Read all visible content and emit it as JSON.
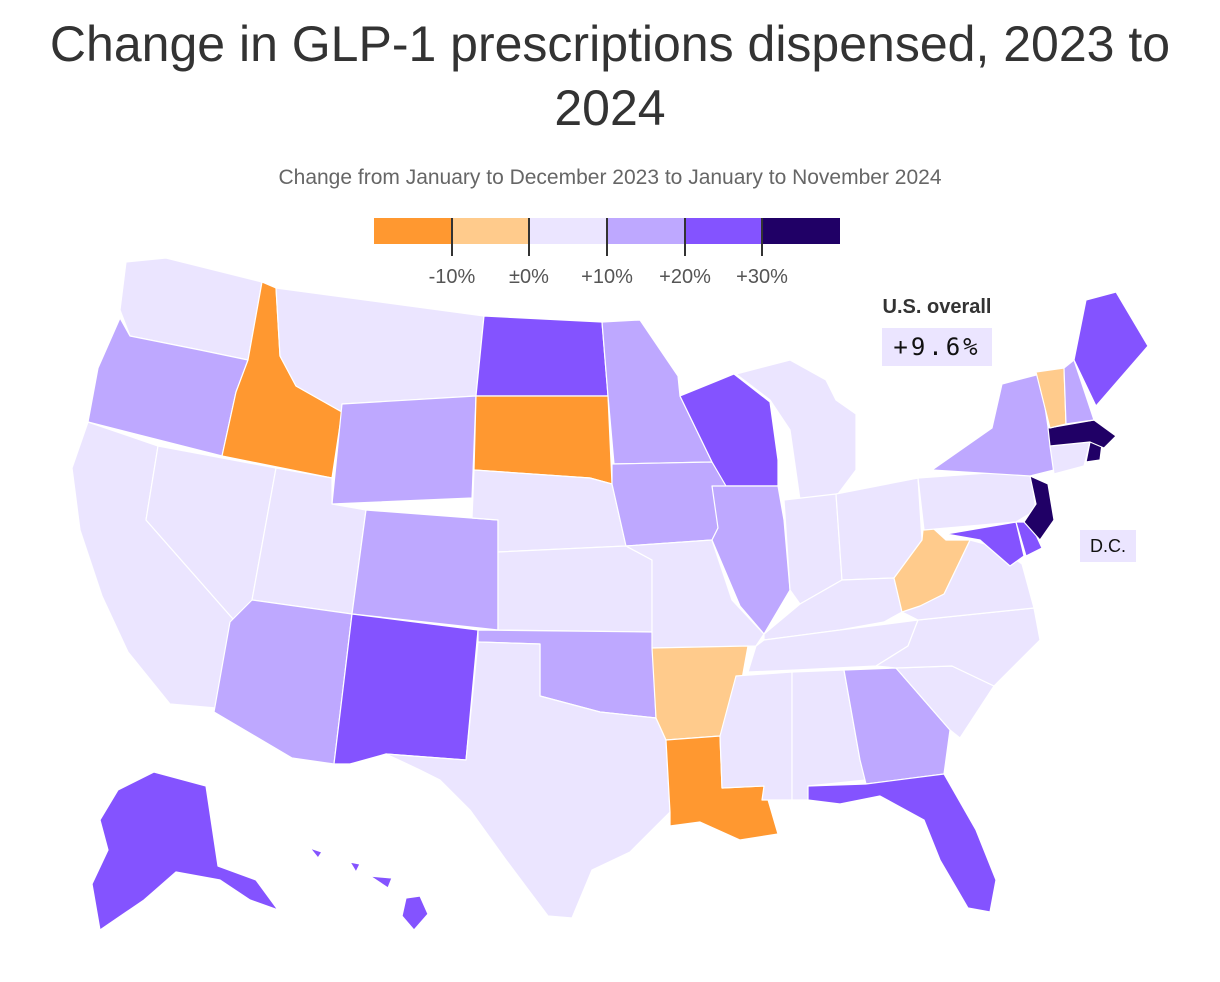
{
  "title": "Change in GLP-1 prescriptions dispensed, 2023 to 2024",
  "subtitle": "Change from January to December 2023 to January to November 2024",
  "legend": {
    "bins": [
      {
        "color": "#ff9830"
      },
      {
        "color": "#ffcb8c"
      },
      {
        "color": "#ebe5ff"
      },
      {
        "color": "#bea8ff"
      },
      {
        "color": "#8453ff"
      },
      {
        "color": "#200066"
      }
    ],
    "tick_labels": [
      "-10%",
      "±0%",
      "+10%",
      "+20%",
      "+30%"
    ]
  },
  "overall": {
    "label": "U.S. overall",
    "value": "+9.6%"
  },
  "dc": {
    "label": "D.C."
  },
  "colors": {
    "decline_strong": "#ff9830",
    "decline": "#ffcb8c",
    "low": "#ebe5ff",
    "mid": "#bea8ff",
    "high": "#8453ff",
    "very_high": "#200066"
  },
  "chart_data": {
    "type": "choropleth",
    "title": "Change in GLP-1 prescriptions dispensed, 2023 to 2024",
    "subtitle": "Change from January to December 2023 to January to November 2024",
    "legend_thresholds": [
      -10,
      0,
      10,
      20,
      30
    ],
    "legend_placement": "top-center",
    "states": [
      {
        "state": "WA",
        "bin": "+0% to +10%"
      },
      {
        "state": "OR",
        "bin": "+10% to +20%"
      },
      {
        "state": "CA",
        "bin": "+0% to +10%"
      },
      {
        "state": "ID",
        "bin": "below -10%"
      },
      {
        "state": "NV",
        "bin": "+0% to +10%"
      },
      {
        "state": "MT",
        "bin": "+0% to +10%"
      },
      {
        "state": "WY",
        "bin": "+10% to +20%"
      },
      {
        "state": "UT",
        "bin": "+0% to +10%"
      },
      {
        "state": "AZ",
        "bin": "+10% to +20%"
      },
      {
        "state": "CO",
        "bin": "+10% to +20%"
      },
      {
        "state": "NM",
        "bin": "+20% to +30%"
      },
      {
        "state": "ND",
        "bin": "+20% to +30%"
      },
      {
        "state": "SD",
        "bin": "below -10%"
      },
      {
        "state": "NE",
        "bin": "+0% to +10%"
      },
      {
        "state": "KS",
        "bin": "+0% to +10%"
      },
      {
        "state": "OK",
        "bin": "+10% to +20%"
      },
      {
        "state": "TX",
        "bin": "+0% to +10%"
      },
      {
        "state": "MN",
        "bin": "+10% to +20%"
      },
      {
        "state": "IA",
        "bin": "+10% to +20%"
      },
      {
        "state": "MO",
        "bin": "+0% to +10%"
      },
      {
        "state": "AR",
        "bin": "-10% to ±0%"
      },
      {
        "state": "LA",
        "bin": "below -10%"
      },
      {
        "state": "WI",
        "bin": "+20% to +30%"
      },
      {
        "state": "IL",
        "bin": "+10% to +20%"
      },
      {
        "state": "MI",
        "bin": "+0% to +10%"
      },
      {
        "state": "IN",
        "bin": "+0% to +10%"
      },
      {
        "state": "OH",
        "bin": "+0% to +10%"
      },
      {
        "state": "KY",
        "bin": "+0% to +10%"
      },
      {
        "state": "TN",
        "bin": "+0% to +10%"
      },
      {
        "state": "MS",
        "bin": "+0% to +10%"
      },
      {
        "state": "AL",
        "bin": "+0% to +10%"
      },
      {
        "state": "GA",
        "bin": "+10% to +20%"
      },
      {
        "state": "FL",
        "bin": "+20% to +30%"
      },
      {
        "state": "SC",
        "bin": "+0% to +10%"
      },
      {
        "state": "NC",
        "bin": "+0% to +10%"
      },
      {
        "state": "VA",
        "bin": "+0% to +10%"
      },
      {
        "state": "WV",
        "bin": "-10% to ±0%"
      },
      {
        "state": "MD",
        "bin": "+20% to +30%"
      },
      {
        "state": "DE",
        "bin": "+20% to +30%"
      },
      {
        "state": "PA",
        "bin": "+0% to +10%"
      },
      {
        "state": "NJ",
        "bin": "above +30%"
      },
      {
        "state": "NY",
        "bin": "+10% to +20%"
      },
      {
        "state": "CT",
        "bin": "+0% to +10%"
      },
      {
        "state": "RI",
        "bin": "above +30%"
      },
      {
        "state": "MA",
        "bin": "above +30%"
      },
      {
        "state": "VT",
        "bin": "-10% to ±0%"
      },
      {
        "state": "NH",
        "bin": "+10% to +20%"
      },
      {
        "state": "ME",
        "bin": "+20% to +30%"
      },
      {
        "state": "AK",
        "bin": "+20% to +30%"
      },
      {
        "state": "HI",
        "bin": "+20% to +30%"
      },
      {
        "state": "DC",
        "bin": "+0% to +10%"
      }
    ],
    "us_overall": 9.6
  }
}
